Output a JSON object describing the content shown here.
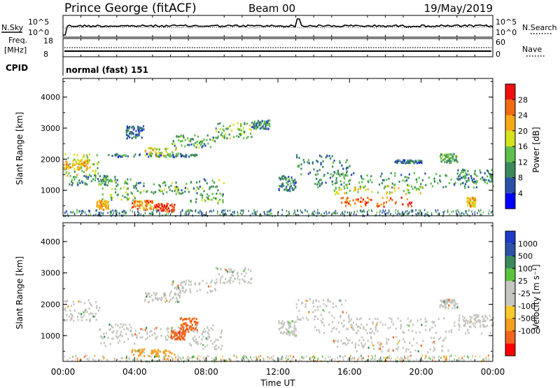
{
  "header": {
    "station": "Prince George (fitACF)",
    "beam": "Beam 00",
    "date": "19/May/2019"
  },
  "strip_labels": {
    "nsky": "N.Sky",
    "nsearch": "N.Search",
    "freq_line1": "Freq.",
    "freq_line2": "[MHz]",
    "nave": "Nave",
    "cpid": "CPID",
    "mode": "normal (fast) 151"
  },
  "noise_axis": {
    "left_top": "10^5",
    "left_bottom": "10^0",
    "right_top": "10^5",
    "right_bottom": "10^0"
  },
  "freq_axis": {
    "left_top": "18",
    "left_bottom": "8",
    "right_top": "60",
    "right_bottom": "0"
  },
  "time_axis": {
    "label": "Time UT",
    "ticks": [
      "00:00",
      "04:00",
      "08:00",
      "12:00",
      "16:00",
      "20:00",
      "00:00"
    ]
  },
  "colors": {
    "power": [
      "#0000ff",
      "#2a52a8",
      "#3c8a5c",
      "#5fbf4f",
      "#d6e21c",
      "#f5a91a",
      "#f26b12",
      "#ee1010"
    ],
    "velocity": [
      "#ff0000",
      "#f0641c",
      "#f2a01e",
      "#f9c82a",
      "#c6c6c0",
      "#c6c6c0",
      "#5bc43d",
      "#3c8a5c",
      "#2a52a8",
      "#1e3cc8"
    ]
  },
  "chart_data": [
    {
      "type": "heatmap",
      "name": "power",
      "ylabel": "Slant Range [km]",
      "xlabel": "",
      "ylim": [
        180,
        4600
      ],
      "yticks": [
        "1000",
        "2000",
        "3000",
        "4000"
      ],
      "xlim": [
        0,
        24
      ],
      "colorbar": {
        "label": "Power [dB]",
        "ticks": [
          "4",
          "8",
          "12",
          "16",
          "20",
          "24",
          "28"
        ],
        "range": [
          0,
          32
        ]
      },
      "regions": [
        {
          "t0": 0.0,
          "t1": 2.0,
          "r0": 1500,
          "r1": 2200,
          "level": 16
        },
        {
          "t0": 0.0,
          "t1": 1.5,
          "r0": 1700,
          "r1": 2000,
          "level": 22
        },
        {
          "t0": 0.3,
          "t1": 3.0,
          "r0": 1200,
          "r1": 1500,
          "level": 10
        },
        {
          "t0": 2.0,
          "t1": 4.0,
          "r0": 700,
          "r1": 1400,
          "level": 13
        },
        {
          "t0": 1.8,
          "t1": 2.5,
          "r0": 400,
          "r1": 700,
          "level": 22
        },
        {
          "t0": 3.8,
          "t1": 5.0,
          "r0": 400,
          "r1": 700,
          "level": 24
        },
        {
          "t0": 5.0,
          "t1": 6.2,
          "r0": 350,
          "r1": 600,
          "level": 28
        },
        {
          "t0": 4.0,
          "t1": 7.0,
          "r0": 900,
          "r1": 1300,
          "level": 12
        },
        {
          "t0": 4.5,
          "t1": 6.5,
          "r0": 2100,
          "r1": 2400,
          "level": 17
        },
        {
          "t0": 2.5,
          "t1": 7.5,
          "r0": 2100,
          "r1": 2200,
          "level": 8
        },
        {
          "t0": 6.0,
          "t1": 8.5,
          "r0": 2400,
          "r1": 2800,
          "level": 12
        },
        {
          "t0": 7.0,
          "t1": 9.0,
          "r0": 600,
          "r1": 1400,
          "level": 12
        },
        {
          "t0": 8.5,
          "t1": 10.5,
          "r0": 2700,
          "r1": 3200,
          "level": 14
        },
        {
          "t0": 10.5,
          "t1": 11.5,
          "r0": 3000,
          "r1": 3300,
          "level": 9
        },
        {
          "t0": 3.5,
          "t1": 4.5,
          "r0": 2700,
          "r1": 3100,
          "level": 8
        },
        {
          "t0": 12.0,
          "t1": 13.0,
          "r0": 1000,
          "r1": 1500,
          "level": 9
        },
        {
          "t0": 13.0,
          "t1": 16.0,
          "r0": 1500,
          "r1": 2200,
          "level": 9
        },
        {
          "t0": 14.0,
          "t1": 24.0,
          "r0": 1100,
          "r1": 1600,
          "level": 11
        },
        {
          "t0": 15.0,
          "t1": 20.0,
          "r0": 900,
          "r1": 1200,
          "level": 17
        },
        {
          "t0": 15.5,
          "t1": 19.5,
          "r0": 500,
          "r1": 800,
          "level": 26
        },
        {
          "t0": 18.5,
          "t1": 20.0,
          "r0": 1900,
          "r1": 2000,
          "level": 8
        },
        {
          "t0": 21.0,
          "t1": 22.0,
          "r0": 1900,
          "r1": 2200,
          "level": 12
        },
        {
          "t0": 22.0,
          "t1": 24.0,
          "r0": 1300,
          "r1": 1700,
          "level": 10
        },
        {
          "t0": 22.5,
          "t1": 23.0,
          "r0": 500,
          "r1": 800,
          "level": 22
        }
      ]
    },
    {
      "type": "heatmap",
      "name": "velocity",
      "ylabel": "Slant Range [km]",
      "xlabel": "Time UT",
      "ylim": [
        180,
        4600
      ],
      "yticks": [
        "1000",
        "2000",
        "3000",
        "4000"
      ],
      "xlim": [
        0,
        24
      ],
      "colorbar": {
        "label": "Velocity [m s⁻¹]",
        "ticks": [
          "1000",
          "500",
          "100",
          "25",
          "-25",
          "-100",
          "-500",
          "-1000"
        ]
      },
      "regions": [
        {
          "t0": 0.0,
          "t1": 2.0,
          "r0": 1500,
          "r1": 2200,
          "level": -10
        },
        {
          "t0": 2.0,
          "t1": 4.0,
          "r0": 700,
          "r1": 1400,
          "level": 0
        },
        {
          "t0": 4.5,
          "t1": 6.5,
          "r0": 2100,
          "r1": 2400,
          "level": 0
        },
        {
          "t0": 6.0,
          "t1": 8.5,
          "r0": 2400,
          "r1": 2800,
          "level": 5
        },
        {
          "t0": 8.5,
          "t1": 10.5,
          "r0": 2700,
          "r1": 3200,
          "level": 0
        },
        {
          "t0": 4.0,
          "t1": 7.0,
          "r0": 900,
          "r1": 1300,
          "level": -10
        },
        {
          "t0": 6.5,
          "t1": 7.5,
          "r0": 1200,
          "r1": 1600,
          "level": -300
        },
        {
          "t0": 6.0,
          "t1": 6.8,
          "r0": 900,
          "r1": 1200,
          "level": -300
        },
        {
          "t0": 3.8,
          "t1": 6.2,
          "r0": 350,
          "r1": 600,
          "level": -60
        },
        {
          "t0": 7.0,
          "t1": 9.0,
          "r0": 600,
          "r1": 1400,
          "level": 0
        },
        {
          "t0": 13.0,
          "t1": 16.0,
          "r0": 1500,
          "r1": 2200,
          "level": 0
        },
        {
          "t0": 14.0,
          "t1": 24.0,
          "r0": 1100,
          "r1": 1600,
          "level": 0
        },
        {
          "t0": 15.0,
          "t1": 21.5,
          "r0": 500,
          "r1": 1000,
          "level": 0
        },
        {
          "t0": 21.0,
          "t1": 22.0,
          "r0": 1900,
          "r1": 2200,
          "level": 0
        },
        {
          "t0": 22.0,
          "t1": 24.0,
          "r0": 1300,
          "r1": 1700,
          "level": 0
        },
        {
          "t0": 12.0,
          "t1": 13.0,
          "r0": 1000,
          "r1": 1500,
          "level": 0
        }
      ]
    }
  ]
}
